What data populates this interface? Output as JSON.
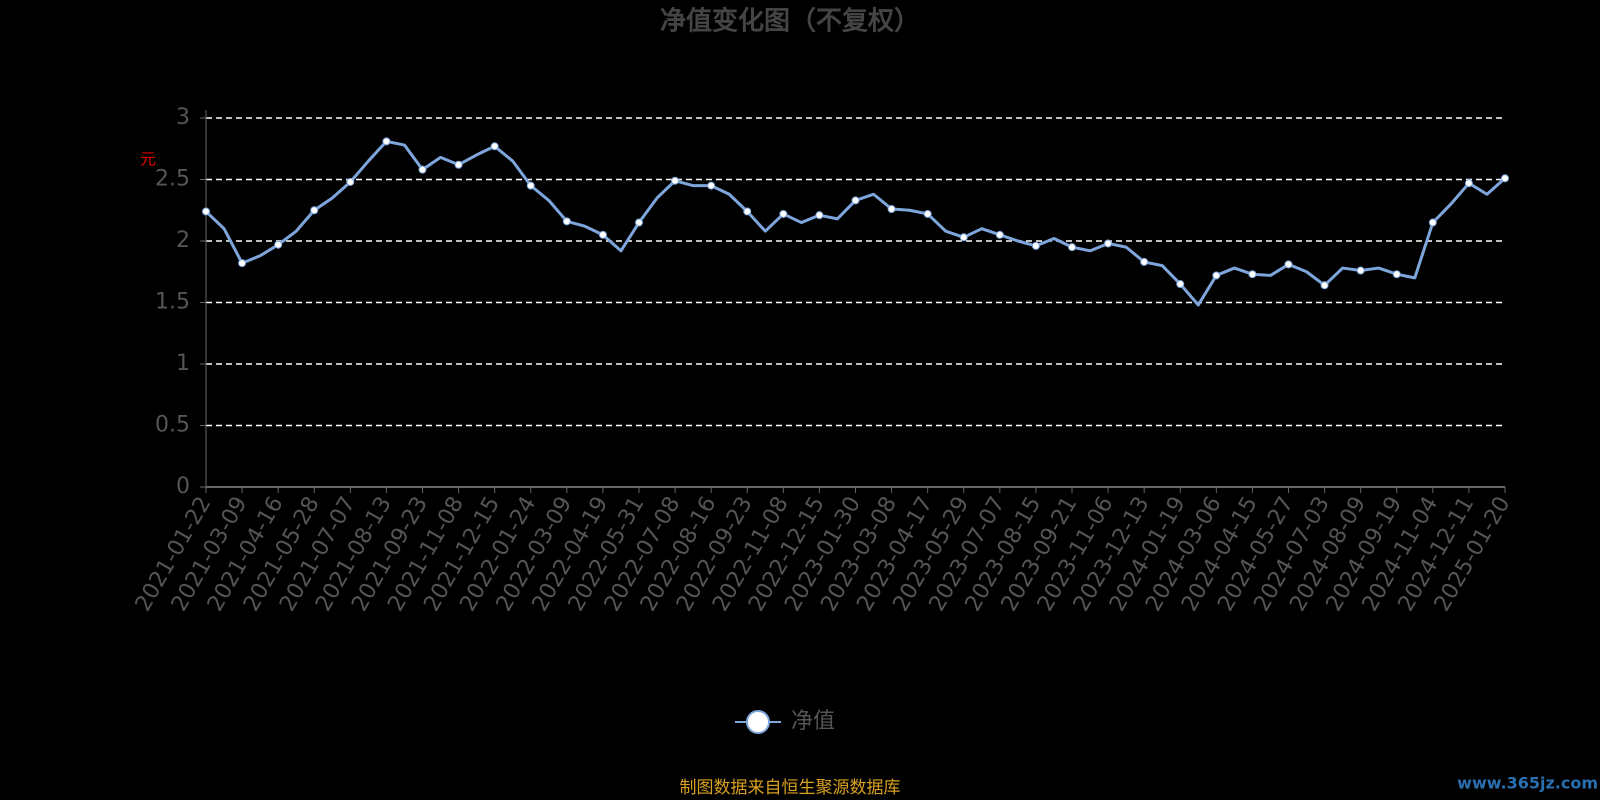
{
  "chart_data": {
    "type": "line",
    "title": "净值变化图（不复权）",
    "y_label": "元",
    "categories": [
      "2021-01-22",
      null,
      "2021-03-09",
      null,
      "2021-04-16",
      null,
      "2021-05-28",
      null,
      "2021-07-07",
      null,
      "2021-08-13",
      null,
      "2021-09-23",
      null,
      "2021-11-08",
      null,
      "2021-12-15",
      null,
      "2022-01-24",
      null,
      "2022-03-09",
      null,
      "2022-04-19",
      null,
      "2022-05-31",
      null,
      "2022-07-08",
      null,
      "2022-08-16",
      null,
      "2022-09-23",
      null,
      "2022-11-08",
      null,
      "2022-12-15",
      null,
      "2023-01-30",
      null,
      "2023-03-08",
      null,
      "2023-04-17",
      null,
      "2023-05-29",
      null,
      "2023-07-07",
      null,
      "2023-08-15",
      null,
      "2023-09-21",
      null,
      "2023-11-06",
      null,
      "2023-12-13",
      null,
      "2024-01-19",
      null,
      "2024-03-06",
      null,
      "2024-04-15",
      null,
      "2024-05-27",
      null,
      "2024-07-03",
      null,
      "2024-08-09",
      null,
      "2024-09-19",
      null,
      "2024-11-04",
      null,
      "2024-12-11",
      null,
      "2025-01-20"
    ],
    "series": [
      {
        "name": "净值",
        "color": "#7ea6dc",
        "values": [
          2.24,
          2.1,
          1.82,
          1.88,
          1.97,
          2.08,
          2.25,
          2.35,
          2.48,
          2.65,
          2.81,
          2.78,
          2.58,
          2.68,
          2.62,
          2.7,
          2.77,
          2.65,
          2.45,
          2.33,
          2.16,
          2.12,
          2.05,
          1.92,
          2.15,
          2.35,
          2.49,
          2.45,
          2.45,
          2.38,
          2.24,
          2.08,
          2.22,
          2.15,
          2.21,
          2.18,
          2.33,
          2.38,
          2.26,
          2.25,
          2.22,
          2.08,
          2.03,
          2.1,
          2.05,
          2.0,
          1.96,
          2.02,
          1.95,
          1.92,
          1.98,
          1.95,
          1.83,
          1.8,
          1.65,
          1.48,
          1.72,
          1.78,
          1.73,
          1.72,
          1.81,
          1.75,
          1.64,
          1.78,
          1.76,
          1.78,
          1.73,
          1.7,
          2.15,
          2.3,
          2.47,
          2.38,
          2.51
        ]
      }
    ],
    "ylim": [
      0,
      3
    ],
    "yticks": [
      0,
      0.5,
      1,
      1.5,
      2,
      2.5,
      3
    ],
    "grid": true,
    "legend": "bottom",
    "source": "制图数据来自恒生聚源数据库",
    "watermark": "www.365jz.com"
  }
}
